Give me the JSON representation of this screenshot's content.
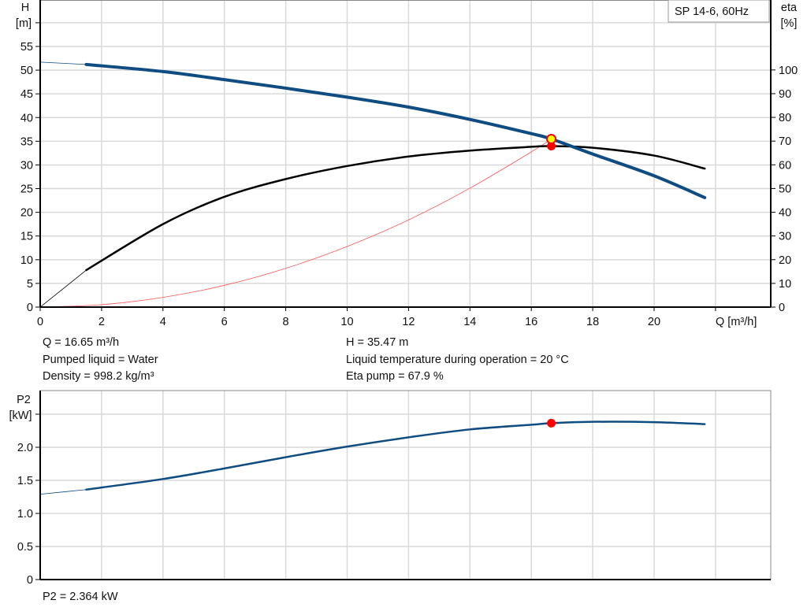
{
  "chart_data": [
    {
      "type": "line",
      "legend": "SP 14-6, 60Hz",
      "legend_position": "top-right",
      "grid": true,
      "xlabel": "Q [m³/h]",
      "ylabel_left": [
        "H",
        "[m]"
      ],
      "ylabel_right": [
        "eta",
        "[%]"
      ],
      "xlim": [
        0,
        23.8
      ],
      "ylim_left": [
        0,
        64.8
      ],
      "ylim_right": [
        0,
        129.5
      ],
      "x_ticks": [
        "0",
        "2",
        "4",
        "6",
        "8",
        "10",
        "12",
        "14",
        "16",
        "18",
        "20"
      ],
      "y_left_ticks": [
        "0",
        "5",
        "10",
        "15",
        "20",
        "25",
        "30",
        "35",
        "40",
        "45",
        "50",
        "55"
      ],
      "y_right_ticks": [
        "0",
        "10",
        "20",
        "30",
        "40",
        "50",
        "60",
        "70",
        "80",
        "90",
        "100"
      ],
      "series": [
        {
          "key": "H",
          "axis": "left",
          "color": "#0f4c81",
          "x": [
            0,
            1.5,
            4,
            6,
            8,
            10,
            12,
            14,
            16,
            16.65,
            18,
            20,
            21.65
          ],
          "y": [
            51.7,
            51.2,
            49.7,
            48.0,
            46.2,
            44.3,
            42.2,
            39.6,
            36.6,
            35.47,
            32.3,
            27.7,
            23.1
          ]
        },
        {
          "key": "eta",
          "axis": "right",
          "color": "#000000",
          "x": [
            0,
            1.5,
            4,
            6,
            8,
            10,
            12,
            14,
            16,
            16.65,
            18,
            20,
            21.65
          ],
          "y": [
            0,
            15.6,
            35,
            46.5,
            54,
            59.5,
            63.5,
            66,
            67.6,
            67.9,
            67.2,
            63.9,
            58.4
          ]
        },
        {
          "key": "system",
          "axis": "left",
          "color": "#ff5555",
          "x": [
            0,
            2,
            4,
            6,
            8,
            10,
            12,
            14,
            16,
            16.65
          ],
          "y": [
            0,
            0.51,
            2.05,
            4.6,
            8.19,
            12.8,
            18.4,
            25.1,
            32.75,
            35.47
          ]
        }
      ],
      "operating_point": {
        "Q": 16.65,
        "H": 35.47,
        "eta": 67.9
      }
    },
    {
      "type": "line",
      "grid": true,
      "ylabel": [
        "P2",
        "[kW]"
      ],
      "xlim": [
        0,
        23.8
      ],
      "ylim": [
        0,
        2.857
      ],
      "y_ticks": [
        "0",
        "0.5",
        "1.0",
        "1.5",
        "2.0"
      ],
      "series": [
        {
          "key": "P2",
          "color": "#0f4c81",
          "x": [
            0,
            1.5,
            4,
            6,
            8,
            10,
            12,
            14,
            16,
            16.65,
            18,
            20,
            21.65
          ],
          "y": [
            1.29,
            1.36,
            1.52,
            1.68,
            1.85,
            2.01,
            2.15,
            2.27,
            2.34,
            2.364,
            2.385,
            2.38,
            2.35
          ]
        }
      ],
      "operating_point": {
        "Q": 16.65,
        "P2": 2.364
      }
    }
  ],
  "info": {
    "q": "Q = 16.65 m³/h",
    "liquid": "Pumped liquid = Water",
    "density": "Density = 998.2 kg/m³",
    "h": "H = 35.47 m",
    "temp": "Liquid temperature during operation = 20 °C",
    "eta": "Eta pump = 67.9 %",
    "p2": "P2 = 2.364 kW"
  }
}
